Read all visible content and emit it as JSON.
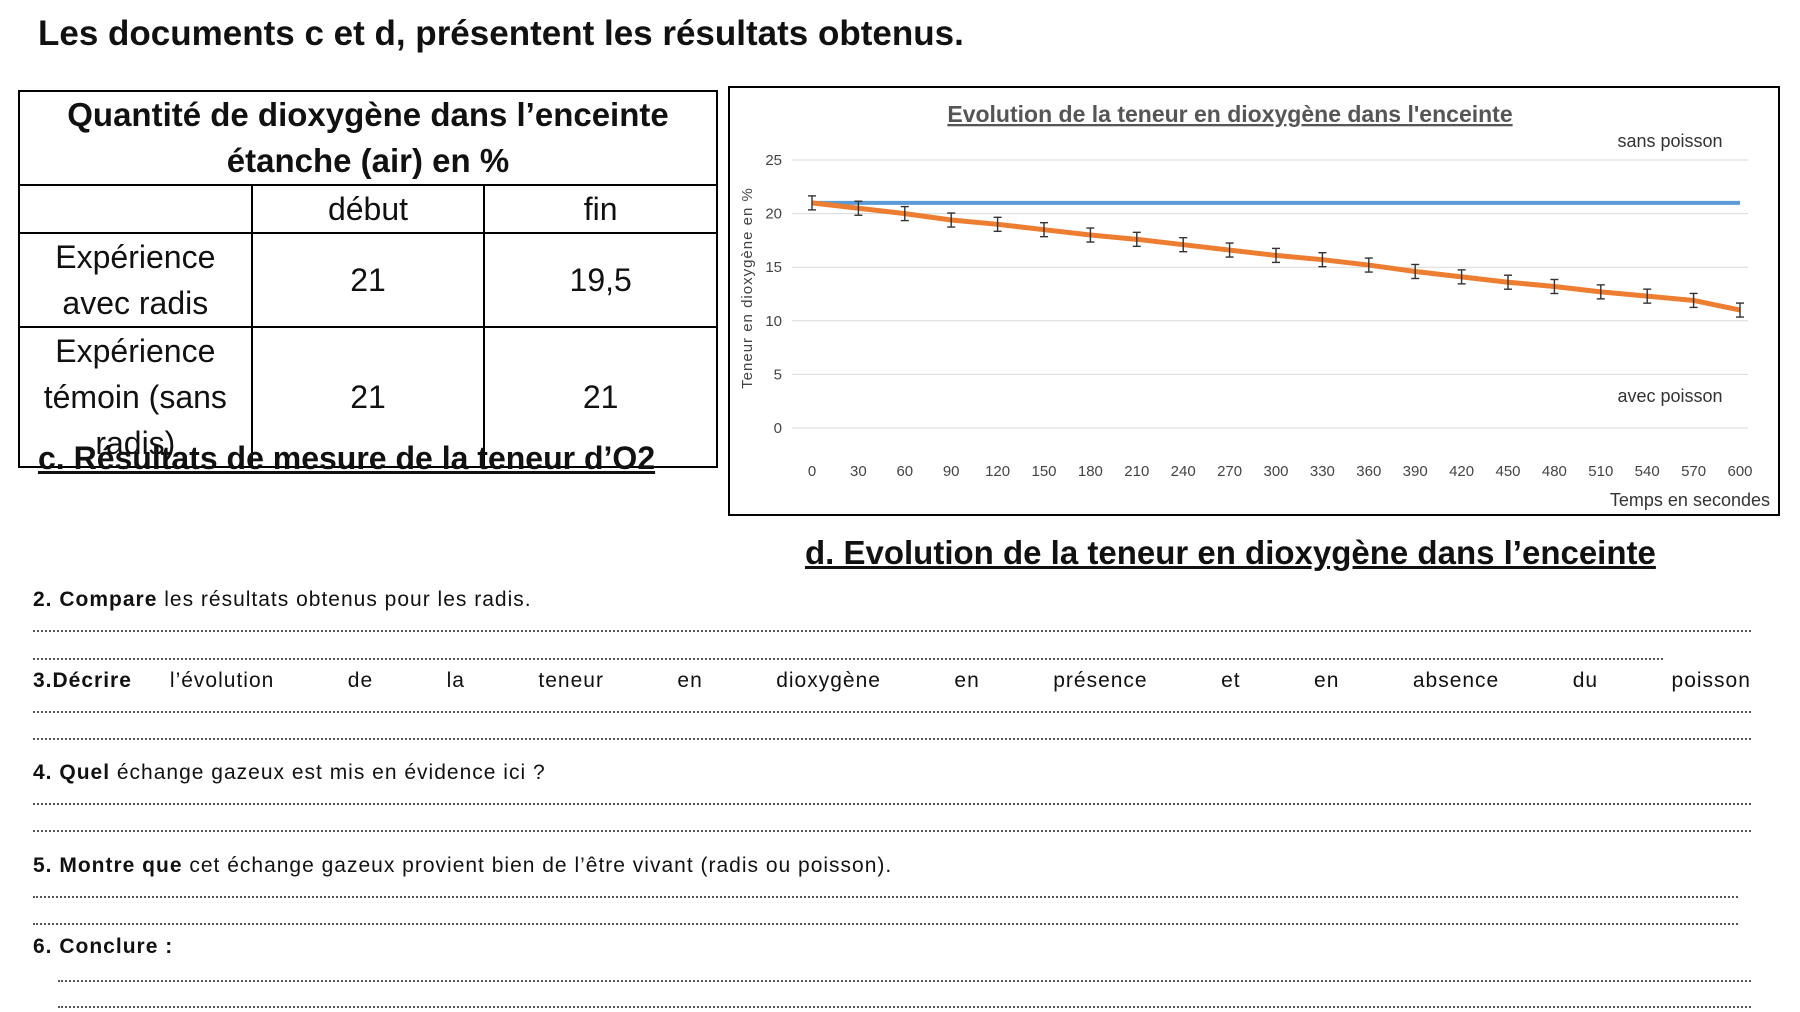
{
  "heading": "Les documents c et d, présentent les résultats obtenus.",
  "table": {
    "title": "Quantité de dioxygène dans l’enceinte étanche (air) en %",
    "col_debut": "début",
    "col_fin": "fin",
    "rows": [
      {
        "label": "Expérience avec radis",
        "debut": "21",
        "fin": "19,5"
      },
      {
        "label": "Expérience témoin (sans radis)",
        "debut": "21",
        "fin": "21"
      }
    ]
  },
  "caption_c": "c. Résultats de mesure de la teneur d’O2",
  "caption_d": "d. Evolution de la teneur en dioxygène dans l’enceinte",
  "chart_data": {
    "type": "line",
    "title": "Evolution de la teneur en dioxygène dans l'enceinte",
    "xlabel": "Temps en secondes",
    "ylabel": "Teneur en dioxygène en %",
    "x": [
      0,
      30,
      60,
      90,
      120,
      150,
      180,
      210,
      240,
      270,
      300,
      330,
      360,
      390,
      420,
      450,
      480,
      510,
      540,
      570,
      600
    ],
    "ylim": [
      0,
      25
    ],
    "yticks": [
      0,
      5,
      10,
      15,
      20,
      25
    ],
    "grid": true,
    "series": [
      {
        "name": "sans poisson",
        "color": "#5b9bd5",
        "values": [
          21,
          21,
          21,
          21,
          21,
          21,
          21,
          21,
          21,
          21,
          21,
          21,
          21,
          21,
          21,
          21,
          21,
          21,
          21,
          21,
          21
        ]
      },
      {
        "name": "avec poisson",
        "color": "#ed7d31",
        "error_bars": true,
        "values": [
          21,
          20.5,
          20,
          19.4,
          19,
          18.5,
          18,
          17.6,
          17.1,
          16.6,
          16.1,
          15.7,
          15.2,
          14.6,
          14.1,
          13.6,
          13.2,
          12.7,
          12.3,
          11.9,
          11.0
        ]
      }
    ]
  },
  "questions": [
    {
      "num": "2.",
      "verb": "Compare",
      "rest": " les résultats obtenus pour les radis."
    },
    {
      "num": "3.",
      "verb": "Décrire",
      "rest": "l’évolution de la teneur en dioxygène en présence et en absence du poisson"
    },
    {
      "num": "4.",
      "verb": "Quel",
      "rest": " échange gazeux est mis en évidence ici ?"
    },
    {
      "num": "5.",
      "verb": "Montre que",
      "rest": " cet échange gazeux provient bien de l’être vivant (radis ou poisson)."
    },
    {
      "num": "6.",
      "verb": "Conclure :",
      "rest": ""
    }
  ]
}
